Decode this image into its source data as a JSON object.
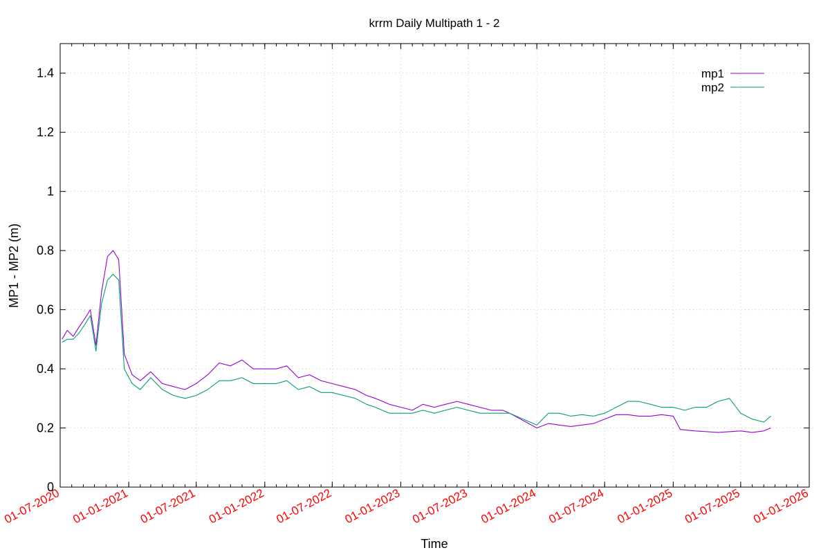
{
  "chart_data": {
    "type": "line",
    "title": "krrm Daily Multipath 1 - 2",
    "xlabel": "Time",
    "ylabel": "MP1 - MP2 (m)",
    "x_is_date": true,
    "xlim": [
      "2020-07-01",
      "2026-01-01"
    ],
    "ylim": [
      0,
      1.5
    ],
    "yticks": [
      0,
      0.2,
      0.4,
      0.6,
      0.8,
      1,
      1.2,
      1.4
    ],
    "ytick_labels": [
      "0",
      "0.2",
      "0.4",
      "0.6",
      "0.8",
      "1",
      "1.2",
      "1.4"
    ],
    "xticks": [
      "2020-07-01",
      "2021-01-01",
      "2021-07-01",
      "2022-01-01",
      "2022-07-01",
      "2023-01-01",
      "2023-07-01",
      "2024-01-01",
      "2024-07-01",
      "2025-01-01",
      "2025-07-01",
      "2026-01-01"
    ],
    "xtick_labels": [
      "01-07-2020",
      "01-01-2021",
      "01-07-2021",
      "01-01-2022",
      "01-07-2022",
      "01-01-2023",
      "01-07-2023",
      "01-01-2024",
      "01-07-2024",
      "01-01-2025",
      "01-07-2025",
      "01-01-2026"
    ],
    "grid": true,
    "legend_position": "top-right",
    "series": [
      {
        "name": "mp1",
        "color": "#9400d3",
        "points": [
          [
            "2020-07-06",
            0.5
          ],
          [
            "2020-07-20",
            0.53
          ],
          [
            "2020-08-05",
            0.51
          ],
          [
            "2020-08-20",
            0.54
          ],
          [
            "2020-09-05",
            0.57
          ],
          [
            "2020-09-20",
            0.6
          ],
          [
            "2020-10-05",
            0.48
          ],
          [
            "2020-10-20",
            0.66
          ],
          [
            "2020-11-05",
            0.78
          ],
          [
            "2020-11-20",
            0.8
          ],
          [
            "2020-12-05",
            0.77
          ],
          [
            "2020-12-20",
            0.45
          ],
          [
            "2021-01-10",
            0.38
          ],
          [
            "2021-02-01",
            0.36
          ],
          [
            "2021-03-01",
            0.39
          ],
          [
            "2021-04-01",
            0.35
          ],
          [
            "2021-05-01",
            0.34
          ],
          [
            "2021-06-01",
            0.33
          ],
          [
            "2021-07-01",
            0.35
          ],
          [
            "2021-08-01",
            0.38
          ],
          [
            "2021-09-01",
            0.42
          ],
          [
            "2021-10-01",
            0.41
          ],
          [
            "2021-11-01",
            0.43
          ],
          [
            "2021-12-01",
            0.4
          ],
          [
            "2022-01-01",
            0.4
          ],
          [
            "2022-02-01",
            0.4
          ],
          [
            "2022-03-01",
            0.41
          ],
          [
            "2022-04-01",
            0.37
          ],
          [
            "2022-05-01",
            0.38
          ],
          [
            "2022-06-01",
            0.36
          ],
          [
            "2022-07-01",
            0.35
          ],
          [
            "2022-08-01",
            0.34
          ],
          [
            "2022-09-01",
            0.33
          ],
          [
            "2022-10-01",
            0.31
          ],
          [
            "2022-10-25",
            0.3
          ],
          [
            "2022-12-01",
            0.28
          ],
          [
            "2023-01-01",
            0.27
          ],
          [
            "2023-02-01",
            0.26
          ],
          [
            "2023-03-01",
            0.28
          ],
          [
            "2023-04-01",
            0.27
          ],
          [
            "2023-05-01",
            0.28
          ],
          [
            "2023-06-01",
            0.29
          ],
          [
            "2023-07-01",
            0.28
          ],
          [
            "2023-08-01",
            0.27
          ],
          [
            "2023-09-01",
            0.26
          ],
          [
            "2023-10-01",
            0.26
          ],
          [
            "2023-10-20",
            0.25
          ],
          [
            "2024-01-01",
            0.2
          ],
          [
            "2024-02-01",
            0.215
          ],
          [
            "2024-03-01",
            0.21
          ],
          [
            "2024-04-01",
            0.205
          ],
          [
            "2024-05-01",
            0.21
          ],
          [
            "2024-06-01",
            0.215
          ],
          [
            "2024-07-01",
            0.23
          ],
          [
            "2024-08-01",
            0.245
          ],
          [
            "2024-09-01",
            0.245
          ],
          [
            "2024-10-01",
            0.24
          ],
          [
            "2024-11-01",
            0.24
          ],
          [
            "2024-12-01",
            0.245
          ],
          [
            "2025-01-01",
            0.24
          ],
          [
            "2025-01-20",
            0.195
          ],
          [
            "2025-03-01",
            0.19
          ],
          [
            "2025-05-01",
            0.185
          ],
          [
            "2025-07-01",
            0.19
          ],
          [
            "2025-08-01",
            0.185
          ],
          [
            "2025-09-01",
            0.19
          ],
          [
            "2025-09-20",
            0.2
          ]
        ]
      },
      {
        "name": "mp2",
        "color": "#009e73",
        "points": [
          [
            "2020-07-06",
            0.49
          ],
          [
            "2020-07-20",
            0.5
          ],
          [
            "2020-08-05",
            0.5
          ],
          [
            "2020-08-20",
            0.52
          ],
          [
            "2020-09-05",
            0.55
          ],
          [
            "2020-09-20",
            0.58
          ],
          [
            "2020-10-05",
            0.46
          ],
          [
            "2020-10-20",
            0.62
          ],
          [
            "2020-11-05",
            0.7
          ],
          [
            "2020-11-20",
            0.72
          ],
          [
            "2020-12-05",
            0.7
          ],
          [
            "2020-12-20",
            0.4
          ],
          [
            "2021-01-10",
            0.35
          ],
          [
            "2021-02-01",
            0.33
          ],
          [
            "2021-03-01",
            0.37
          ],
          [
            "2021-04-01",
            0.33
          ],
          [
            "2021-05-01",
            0.31
          ],
          [
            "2021-06-01",
            0.3
          ],
          [
            "2021-07-01",
            0.31
          ],
          [
            "2021-08-01",
            0.33
          ],
          [
            "2021-09-01",
            0.36
          ],
          [
            "2021-10-01",
            0.36
          ],
          [
            "2021-11-01",
            0.37
          ],
          [
            "2021-12-01",
            0.35
          ],
          [
            "2022-01-01",
            0.35
          ],
          [
            "2022-02-01",
            0.35
          ],
          [
            "2022-03-01",
            0.36
          ],
          [
            "2022-04-01",
            0.33
          ],
          [
            "2022-05-01",
            0.34
          ],
          [
            "2022-06-01",
            0.32
          ],
          [
            "2022-07-01",
            0.32
          ],
          [
            "2022-08-01",
            0.31
          ],
          [
            "2022-09-01",
            0.3
          ],
          [
            "2022-10-01",
            0.28
          ],
          [
            "2022-10-25",
            0.27
          ],
          [
            "2022-12-01",
            0.25
          ],
          [
            "2023-01-01",
            0.25
          ],
          [
            "2023-02-01",
            0.25
          ],
          [
            "2023-03-01",
            0.26
          ],
          [
            "2023-04-01",
            0.25
          ],
          [
            "2023-05-01",
            0.26
          ],
          [
            "2023-06-01",
            0.27
          ],
          [
            "2023-07-01",
            0.26
          ],
          [
            "2023-08-01",
            0.25
          ],
          [
            "2023-09-01",
            0.25
          ],
          [
            "2023-10-01",
            0.25
          ],
          [
            "2023-10-20",
            0.25
          ],
          [
            "2024-01-01",
            0.21
          ],
          [
            "2024-02-01",
            0.25
          ],
          [
            "2024-03-01",
            0.25
          ],
          [
            "2024-04-01",
            0.24
          ],
          [
            "2024-05-01",
            0.245
          ],
          [
            "2024-06-01",
            0.24
          ],
          [
            "2024-07-01",
            0.25
          ],
          [
            "2024-08-01",
            0.27
          ],
          [
            "2024-09-01",
            0.29
          ],
          [
            "2024-10-01",
            0.29
          ],
          [
            "2024-11-01",
            0.28
          ],
          [
            "2024-12-01",
            0.27
          ],
          [
            "2025-01-01",
            0.27
          ],
          [
            "2025-02-01",
            0.26
          ],
          [
            "2025-03-01",
            0.27
          ],
          [
            "2025-04-01",
            0.27
          ],
          [
            "2025-05-01",
            0.29
          ],
          [
            "2025-06-01",
            0.3
          ],
          [
            "2025-07-01",
            0.25
          ],
          [
            "2025-08-01",
            0.23
          ],
          [
            "2025-09-01",
            0.22
          ],
          [
            "2025-09-20",
            0.24
          ]
        ]
      }
    ]
  }
}
